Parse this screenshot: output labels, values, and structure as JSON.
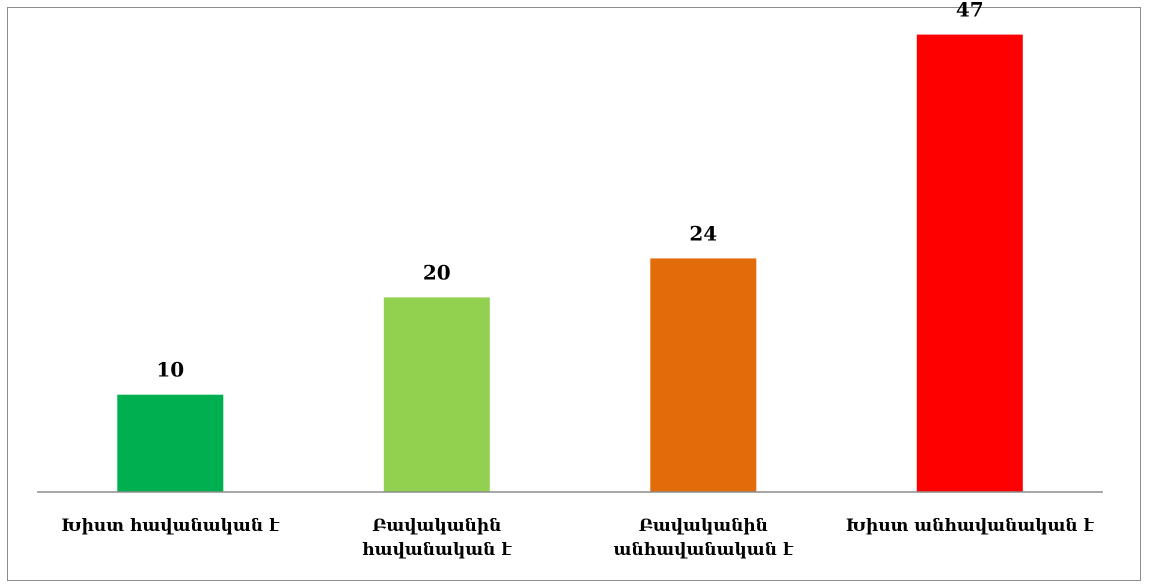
{
  "chart_data": {
    "type": "bar",
    "title": "",
    "xlabel": "",
    "ylabel": "",
    "categories": [
      [
        "Խիստ հավանական է"
      ],
      [
        "Բավականին",
        "հավանական է"
      ],
      [
        "Բավականին",
        "անհավանական է"
      ],
      [
        "Խիստ անհավանական է"
      ]
    ],
    "values": [
      10,
      20,
      24,
      47
    ],
    "colors": [
      "#00b050",
      "#92d050",
      "#e36c0a",
      "#ff0000"
    ],
    "data_labels": [
      "10",
      "20",
      "24",
      "47"
    ],
    "ylim": [
      0,
      48.5
    ],
    "grid": false,
    "legend": "none",
    "axis_color": "#8c8c8c"
  }
}
